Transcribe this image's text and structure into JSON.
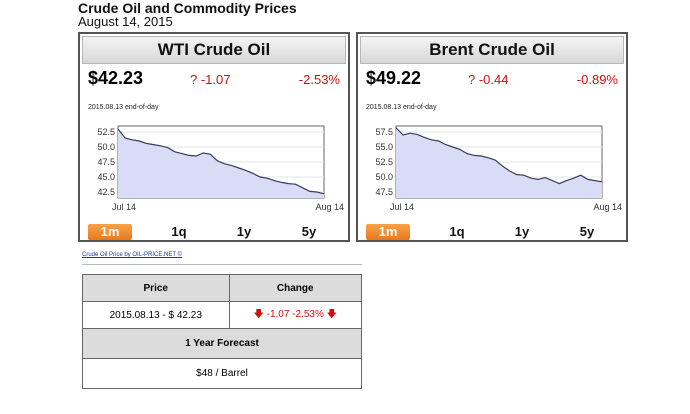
{
  "page": {
    "title": "Crude Oil and Commodity Prices",
    "date": "August 14, 2015"
  },
  "widgets": [
    {
      "name": "WTI Crude Oil",
      "price": "$42.23",
      "change": "? -1.07",
      "pct": "-2.53%",
      "eod": "2015.08.13 end-of-day",
      "yticks": [
        "52.5",
        "50.0",
        "47.5",
        "45.0",
        "42.5"
      ],
      "xticks": [
        "Jul 14",
        "Aug 14"
      ],
      "periods": [
        "1m",
        "1q",
        "1y",
        "5y"
      ],
      "active_period": "1m",
      "chart_data": {
        "type": "area",
        "ylim": [
          41.5,
          53.5
        ],
        "values": [
          53.0,
          51.5,
          51.2,
          51.0,
          50.6,
          50.4,
          50.2,
          49.9,
          49.2,
          48.9,
          48.6,
          48.5,
          49.0,
          48.8,
          47.7,
          47.2,
          46.9,
          46.5,
          46.1,
          45.6,
          45.0,
          44.8,
          44.4,
          44.1,
          43.9,
          43.8,
          43.2,
          42.6,
          42.5,
          42.2
        ]
      }
    },
    {
      "name": "Brent Crude Oil",
      "price": "$49.22",
      "change": "? -0.44",
      "pct": "-0.89%",
      "eod": "2015.08.13 end-of-day",
      "yticks": [
        "57.5",
        "55.0",
        "52.5",
        "50.0",
        "47.5"
      ],
      "xticks": [
        "Jul 14",
        "Aug 14"
      ],
      "periods": [
        "1m",
        "1q",
        "1y",
        "5y"
      ],
      "active_period": "1m",
      "chart_data": {
        "type": "area",
        "ylim": [
          46.5,
          58.5
        ],
        "values": [
          58.2,
          57.0,
          57.3,
          57.1,
          56.6,
          56.2,
          56.0,
          55.4,
          55.0,
          54.6,
          53.9,
          53.6,
          53.5,
          53.2,
          52.8,
          51.8,
          51.0,
          50.4,
          50.3,
          49.8,
          49.6,
          49.9,
          49.4,
          48.9,
          49.4,
          49.8,
          50.3,
          49.6,
          49.4,
          49.2
        ]
      }
    }
  ],
  "attribution": "Crude Oil Price by OIL-PRICE.NET ©",
  "table": {
    "col_price": "Price",
    "col_change": "Change",
    "price_value": "2015.08.13 - $ 42.23",
    "change_value": "-1.07 -2.53%",
    "forecast_title": "1 Year Forecast",
    "forecast_value": "$48 / Barrel"
  }
}
